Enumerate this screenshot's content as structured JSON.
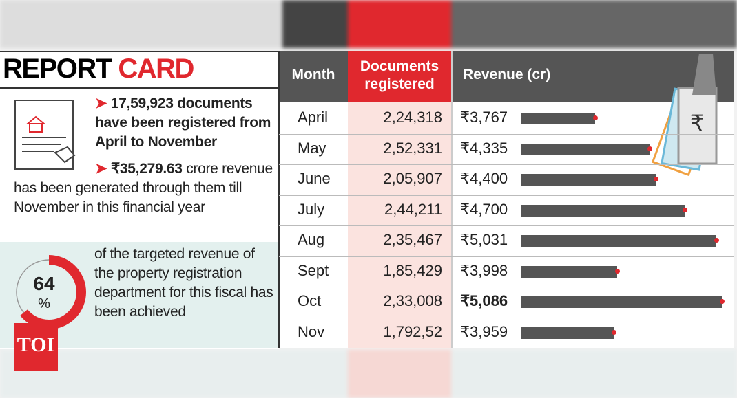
{
  "title": "REPORT",
  "title_highlight": "CARD",
  "facts": [
    {
      "bold": "17,59,923 documents have been registered from April to November"
    },
    {
      "bold": "₹35,279.63",
      "text": "crore revenue has been generated through them till November in this financial year"
    }
  ],
  "donut": {
    "value": 64,
    "unit": "%",
    "text": "of the targeted revenue of the property registration department for this fiscal has been achieved"
  },
  "logo": "TOI",
  "chart_data": {
    "type": "bar",
    "orientation": "horizontal",
    "columns": [
      "Month",
      "Documents registered",
      "Revenue (cr)"
    ],
    "categories": [
      "April",
      "May",
      "June",
      "July",
      "Aug",
      "Sept",
      "Oct",
      "Nov"
    ],
    "documents": [
      "2,24,318",
      "2,52,331",
      "2,05,907",
      "2,44,211",
      "2,35,467",
      "1,85,429",
      "2,33,008",
      "1,792,52"
    ],
    "values": [
      3767,
      4335,
      4400,
      4700,
      5031,
      3998,
      5086,
      3959
    ],
    "value_labels": [
      "₹3,767",
      "₹4,335",
      "₹4,400",
      "₹4,700",
      "₹5,031",
      "₹3,998",
      "₹5,086",
      "₹3,959"
    ],
    "bold_index": 6,
    "xlim": [
      3000,
      5100
    ],
    "color": "#555555",
    "highlight_color": "#e0282e"
  }
}
